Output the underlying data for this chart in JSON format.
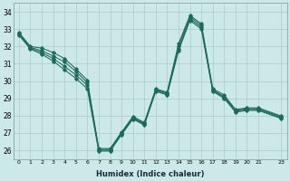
{
  "xlabel": "Humidex (Indice chaleur)",
  "bg_color": "#cce8e8",
  "grid_color": "#aacccc",
  "line_color": "#1a6b5a",
  "xlim": [
    -0.5,
    23.5
  ],
  "ylim": [
    25.5,
    34.5
  ],
  "yticks": [
    26,
    27,
    28,
    29,
    30,
    31,
    32,
    33,
    34
  ],
  "xtick_labels": [
    "0",
    "1",
    "2",
    "3",
    "4",
    "5",
    "6",
    "7",
    "8",
    "9",
    "10",
    "11",
    "12",
    "13",
    "14",
    "15",
    "16",
    "17",
    "18",
    "19",
    "20",
    "21",
    "23"
  ],
  "xtick_pos": [
    0,
    1,
    2,
    3,
    4,
    5,
    6,
    7,
    8,
    9,
    10,
    11,
    12,
    13,
    14,
    15,
    16,
    17,
    18,
    19,
    20,
    21,
    23
  ],
  "series": [
    {
      "x": [
        0,
        1,
        2,
        3,
        4,
        5,
        6,
        7,
        8,
        9,
        10,
        11,
        12,
        13,
        14,
        15,
        16,
        17,
        18,
        19,
        20,
        21,
        23
      ],
      "y": [
        32.8,
        32.0,
        31.9,
        31.65,
        31.3,
        30.7,
        30.05,
        26.1,
        26.1,
        27.05,
        27.95,
        27.6,
        29.55,
        29.35,
        32.15,
        33.8,
        33.3,
        29.55,
        29.2,
        28.35,
        28.45,
        28.45,
        27.98
      ]
    },
    {
      "x": [
        0,
        1,
        2,
        3,
        4,
        5,
        6,
        7,
        8,
        9,
        10,
        11,
        12,
        13,
        14,
        15,
        16,
        17,
        18,
        19,
        20,
        21,
        23
      ],
      "y": [
        32.75,
        31.95,
        31.75,
        31.45,
        31.1,
        30.55,
        29.9,
        26.05,
        26.05,
        27.0,
        27.9,
        27.55,
        29.5,
        29.3,
        32.0,
        33.7,
        33.2,
        29.5,
        29.1,
        28.3,
        28.4,
        28.4,
        27.93
      ]
    },
    {
      "x": [
        0,
        1,
        2,
        3,
        4,
        5,
        6,
        7,
        8,
        9,
        10,
        11,
        12,
        13,
        14,
        15,
        16,
        17,
        18,
        19,
        20,
        21,
        23
      ],
      "y": [
        32.7,
        31.9,
        31.65,
        31.3,
        30.85,
        30.35,
        29.75,
        26.0,
        26.0,
        26.95,
        27.85,
        27.5,
        29.45,
        29.25,
        31.85,
        33.6,
        33.1,
        29.45,
        29.05,
        28.25,
        28.35,
        28.35,
        27.88
      ]
    },
    {
      "x": [
        0,
        1,
        2,
        3,
        4,
        5,
        6,
        7,
        8,
        9,
        10,
        11,
        12,
        13,
        14,
        15,
        16,
        17,
        18,
        19,
        20,
        21,
        23
      ],
      "y": [
        32.65,
        31.85,
        31.55,
        31.15,
        30.65,
        30.15,
        29.55,
        25.95,
        25.95,
        26.9,
        27.8,
        27.45,
        29.4,
        29.2,
        31.75,
        33.5,
        33.0,
        29.4,
        29.0,
        28.2,
        28.3,
        28.3,
        27.83
      ]
    }
  ]
}
